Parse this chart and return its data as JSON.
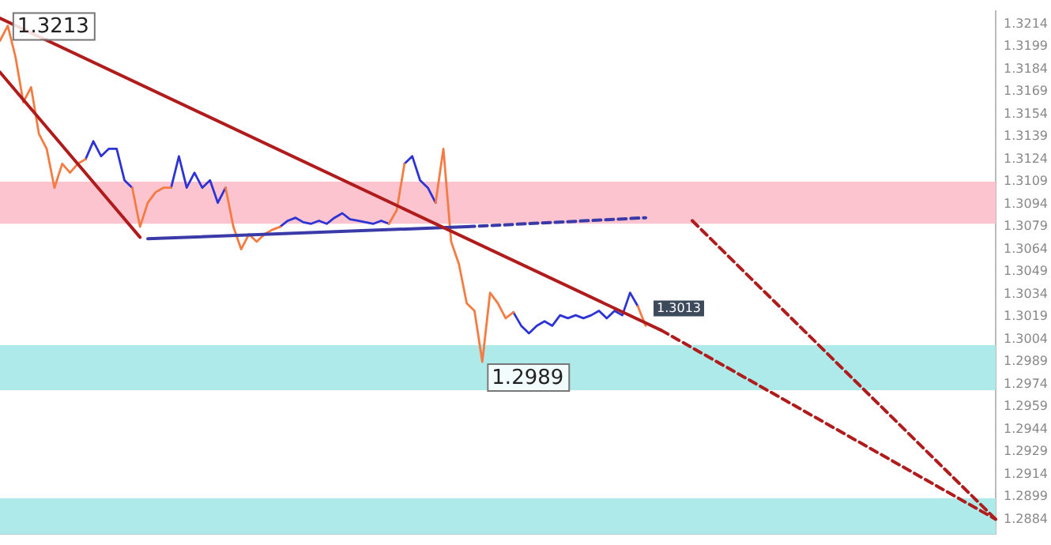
{
  "chart_data": {
    "type": "line",
    "categories": [
      null,
      null,
      null,
      null,
      null,
      null,
      null,
      null,
      null,
      null,
      null,
      null,
      null,
      null,
      null,
      null,
      null,
      null,
      null,
      null,
      null,
      null,
      null,
      null,
      null,
      null,
      null,
      null,
      null,
      null,
      null,
      null,
      null,
      null,
      null,
      null,
      null,
      null,
      null,
      null,
      null,
      null,
      null,
      null,
      null,
      null,
      null,
      null,
      null,
      null,
      null,
      null,
      null,
      null,
      null,
      null,
      null,
      null,
      null,
      null,
      null,
      null,
      null,
      null,
      null,
      null,
      null,
      null,
      null,
      null,
      null,
      null,
      null,
      null,
      null,
      null,
      null,
      null,
      null,
      null,
      null,
      null,
      null,
      null,
      null,
      null,
      null,
      null,
      null,
      null,
      null,
      null,
      null,
      null,
      null,
      null,
      null,
      null,
      null,
      null,
      null,
      null,
      null,
      null,
      null,
      null,
      null,
      null,
      null,
      null,
      null,
      null,
      null,
      null,
      null,
      null,
      null,
      null,
      null,
      null,
      null,
      null,
      null,
      null,
      null,
      null,
      null,
      null,
      null
    ],
    "series": [
      {
        "color": "#f47b42",
        "value_labels": [
          null,
          "1.3213",
          null,
          null,
          null,
          null,
          null,
          null,
          null,
          null,
          null,
          null,
          null,
          null,
          null,
          null,
          null,
          null,
          null,
          null,
          null,
          null,
          null,
          null,
          null,
          null,
          null,
          null,
          null,
          null,
          null,
          null,
          null,
          null,
          null,
          null,
          null,
          null,
          null,
          null,
          null,
          null,
          null,
          null,
          null,
          null,
          null,
          null,
          null,
          null,
          null,
          null,
          null,
          null,
          null,
          null,
          null,
          null,
          null,
          null,
          null,
          null,
          "1.2989",
          null,
          null,
          null,
          null,
          null,
          null,
          null,
          null,
          null,
          null,
          null,
          null,
          null,
          null,
          null,
          null,
          null,
          null,
          null,
          null,
          "1.3013",
          null,
          null,
          null,
          null,
          null,
          null,
          null,
          null,
          null,
          null,
          null,
          null,
          null,
          null,
          null,
          null,
          null,
          null,
          null,
          null,
          null,
          null,
          null,
          null,
          null,
          null,
          null,
          null,
          null,
          null,
          null,
          null,
          null,
          null,
          null,
          null,
          null,
          null,
          null,
          null,
          null,
          null,
          null,
          null,
          null
        ],
        "values": [
          1.3203,
          1.3213,
          1.3192,
          1.3162,
          1.3172,
          1.3141,
          1.3131,
          1.3105,
          1.3121,
          1.3115,
          1.3121,
          1.3124,
          null,
          null,
          null,
          null,
          null,
          1.3105,
          1.3079,
          1.3095,
          1.3102,
          1.3105,
          1.3105,
          null,
          null,
          null,
          null,
          null,
          null,
          1.3105,
          1.3079,
          1.3064,
          1.3074,
          1.3069,
          1.3074,
          1.3077,
          1.3079,
          null,
          null,
          null,
          null,
          null,
          null,
          null,
          null,
          null,
          null,
          null,
          null,
          null,
          1.3081,
          1.309,
          1.3121,
          null,
          null,
          null,
          1.3095,
          1.3131,
          1.3069,
          1.3054,
          1.3028,
          1.3023,
          1.2989,
          1.3035,
          1.3028,
          1.3018,
          1.3022,
          null,
          null,
          null,
          null,
          null,
          null,
          null,
          null,
          null,
          null,
          null,
          null,
          null,
          null,
          null,
          1.3026,
          1.3013,
          null,
          null,
          null,
          null,
          null,
          null,
          null,
          null,
          null,
          null,
          null,
          null,
          null,
          null,
          null,
          null,
          null,
          null,
          null,
          null,
          null,
          null,
          null,
          null,
          null,
          null,
          null,
          null,
          null,
          null,
          null,
          null,
          null,
          null,
          null,
          null,
          null,
          null,
          null,
          null,
          null,
          null,
          null,
          null,
          null
        ]
      },
      {
        "color": "#2e33d6",
        "values": [
          null,
          null,
          null,
          null,
          null,
          null,
          null,
          null,
          null,
          null,
          null,
          1.3124,
          1.3136,
          1.3126,
          1.3131,
          1.3131,
          1.311,
          1.3105,
          null,
          null,
          null,
          null,
          1.3105,
          1.3126,
          1.3105,
          1.3115,
          1.3105,
          1.311,
          1.3095,
          1.3105,
          null,
          null,
          null,
          null,
          null,
          null,
          1.3079,
          1.3083,
          1.3085,
          1.3082,
          1.3081,
          1.3083,
          1.3081,
          1.3085,
          1.3088,
          1.3084,
          1.3083,
          1.3082,
          1.3081,
          1.3083,
          1.3081,
          null,
          1.3121,
          1.3126,
          1.311,
          1.3105,
          1.3095,
          null,
          null,
          null,
          null,
          null,
          null,
          null,
          null,
          null,
          1.3022,
          1.3013,
          1.3008,
          1.3013,
          1.3016,
          1.3013,
          1.302,
          1.3018,
          1.302,
          1.3018,
          1.302,
          1.3023,
          1.3018,
          1.3023,
          1.302,
          1.3035,
          1.3026,
          null,
          null,
          null,
          null,
          null,
          null,
          null,
          null,
          null,
          null,
          null,
          null,
          null,
          null,
          null,
          null,
          null,
          null,
          null,
          null,
          null,
          null,
          null,
          null,
          null,
          null,
          null,
          null,
          null,
          null,
          null,
          null,
          null,
          null,
          null,
          null,
          null,
          null,
          null,
          null,
          null,
          null,
          null,
          null,
          null,
          null
        ]
      },
      {
        "type": "line",
        "color": "#b01c1c",
        "values": [
          1.3218,
          null,
          null,
          null,
          null,
          null,
          null,
          null,
          null,
          null,
          null,
          null,
          null,
          null,
          null,
          null,
          null,
          null,
          null,
          null,
          null,
          null,
          null,
          null,
          null,
          null,
          null,
          null,
          null,
          null,
          null,
          null,
          null,
          null,
          null,
          null,
          null,
          null,
          null,
          null,
          null,
          null,
          null,
          null,
          null,
          null,
          null,
          null,
          null,
          null,
          null,
          null,
          null,
          null,
          null,
          null,
          null,
          null,
          null,
          null,
          null,
          null,
          null,
          null,
          null,
          null,
          null,
          null,
          null,
          null,
          null,
          null,
          null,
          null,
          null,
          null,
          null,
          null,
          null,
          null,
          null,
          null,
          null,
          null,
          null,
          1.301,
          null,
          null,
          null,
          null,
          null,
          null,
          null,
          null,
          null,
          null,
          null,
          null,
          null,
          null,
          null,
          null,
          null,
          null,
          null,
          null,
          null,
          null,
          null,
          null,
          null,
          null,
          null,
          null,
          null,
          null,
          null,
          null,
          null,
          null,
          null,
          null,
          null,
          null,
          null,
          null,
          null,
          null,
          null
        ]
      },
      {
        "type": "line",
        "color": "#b01c1c",
        "line_style": "dashed",
        "values": [
          null,
          null,
          null,
          null,
          null,
          null,
          null,
          null,
          null,
          null,
          null,
          null,
          null,
          null,
          null,
          null,
          null,
          null,
          null,
          null,
          null,
          null,
          null,
          null,
          null,
          null,
          null,
          null,
          null,
          null,
          null,
          null,
          null,
          null,
          null,
          null,
          null,
          null,
          null,
          null,
          null,
          null,
          null,
          null,
          null,
          null,
          null,
          null,
          null,
          null,
          null,
          null,
          null,
          null,
          null,
          null,
          null,
          null,
          null,
          null,
          null,
          null,
          null,
          null,
          null,
          null,
          null,
          null,
          null,
          null,
          null,
          null,
          null,
          null,
          null,
          null,
          null,
          null,
          null,
          null,
          null,
          null,
          null,
          null,
          null,
          1.301,
          null,
          null,
          null,
          null,
          null,
          null,
          null,
          null,
          null,
          null,
          null,
          null,
          null,
          null,
          null,
          null,
          null,
          null,
          null,
          null,
          null,
          null,
          null,
          null,
          null,
          null,
          null,
          null,
          null,
          null,
          null,
          null,
          null,
          null,
          null,
          null,
          null,
          null,
          null,
          null,
          null,
          null,
          1.2884
        ]
      },
      {
        "type": "line",
        "color": "#b01c1c",
        "values": [
          1.3182,
          null,
          null,
          null,
          null,
          null,
          null,
          null,
          null,
          null,
          null,
          null,
          null,
          null,
          null,
          null,
          null,
          null,
          1.3072,
          null,
          null,
          null,
          null,
          null,
          null,
          null,
          null,
          null,
          null,
          null,
          null,
          null,
          null,
          null,
          null,
          null,
          null,
          null,
          null,
          null,
          null,
          null,
          null,
          null,
          null,
          null,
          null,
          null,
          null,
          null,
          null,
          null,
          null,
          null,
          null,
          null,
          null,
          null,
          null,
          null,
          null,
          null,
          null,
          null,
          null,
          null,
          null,
          null,
          null,
          null,
          null,
          null,
          null,
          null,
          null,
          null,
          null,
          null,
          null,
          null,
          null,
          null,
          null,
          null,
          null,
          null,
          null,
          null,
          null,
          null,
          null,
          null,
          null,
          null,
          null,
          null,
          null,
          null,
          null,
          null,
          null,
          null,
          null,
          null,
          null,
          null,
          null,
          null,
          null,
          null,
          null,
          null,
          null,
          null,
          null,
          null,
          null,
          null,
          null,
          null,
          null,
          null,
          null,
          null,
          null,
          null,
          null,
          null,
          null
        ]
      },
      {
        "type": "line",
        "color": "#3a3aa8",
        "values": [
          null,
          null,
          null,
          null,
          null,
          null,
          null,
          null,
          null,
          null,
          null,
          null,
          null,
          null,
          null,
          null,
          null,
          null,
          null,
          1.3071,
          null,
          null,
          null,
          null,
          null,
          null,
          null,
          null,
          null,
          null,
          null,
          null,
          null,
          null,
          null,
          null,
          null,
          null,
          null,
          null,
          null,
          null,
          null,
          null,
          null,
          null,
          null,
          null,
          null,
          null,
          null,
          null,
          null,
          null,
          null,
          null,
          null,
          null,
          null,
          null,
          1.3079,
          null,
          null,
          null,
          null,
          null,
          null,
          null,
          null,
          null,
          null,
          null,
          null,
          null,
          null,
          null,
          null,
          null,
          null,
          null,
          null,
          null,
          null,
          null,
          null,
          null,
          null,
          null,
          null,
          null,
          null,
          null,
          null,
          null,
          null,
          null,
          null,
          null,
          null,
          null,
          null,
          null,
          null,
          null,
          null,
          null,
          null,
          null,
          null,
          null,
          null,
          null,
          null,
          null,
          null,
          null,
          null,
          null,
          null,
          null,
          null,
          null,
          null,
          null,
          null,
          null,
          null,
          null,
          null
        ]
      },
      {
        "type": "line",
        "color": "#3a3aa8",
        "line_style": "dashed",
        "values": [
          null,
          null,
          null,
          null,
          null,
          null,
          null,
          null,
          null,
          null,
          null,
          null,
          null,
          null,
          null,
          null,
          null,
          null,
          null,
          null,
          null,
          null,
          null,
          null,
          null,
          null,
          null,
          null,
          null,
          null,
          null,
          null,
          null,
          null,
          null,
          null,
          null,
          null,
          null,
          null,
          null,
          null,
          null,
          null,
          null,
          null,
          null,
          null,
          null,
          null,
          null,
          null,
          null,
          null,
          null,
          null,
          null,
          null,
          null,
          null,
          1.3079,
          null,
          null,
          null,
          null,
          null,
          null,
          null,
          null,
          null,
          null,
          null,
          null,
          null,
          null,
          null,
          null,
          null,
          null,
          null,
          null,
          null,
          null,
          1.3085,
          null,
          null,
          null,
          null,
          null,
          null,
          null,
          null,
          null,
          null,
          null,
          null,
          null,
          null,
          null,
          null,
          null,
          null,
          null,
          null,
          null,
          null,
          null,
          null,
          null,
          null,
          null,
          null,
          null,
          null,
          null,
          null,
          null,
          null,
          null,
          null,
          null,
          null,
          null,
          null,
          null,
          null,
          null,
          null,
          null
        ]
      },
      {
        "type": "line",
        "color": "#b01c1c",
        "line_style": "dashed",
        "values": [
          null,
          null,
          null,
          null,
          null,
          null,
          null,
          null,
          null,
          null,
          null,
          null,
          null,
          null,
          null,
          null,
          null,
          null,
          null,
          null,
          null,
          null,
          null,
          null,
          null,
          null,
          null,
          null,
          null,
          null,
          null,
          null,
          null,
          null,
          null,
          null,
          null,
          null,
          null,
          null,
          null,
          null,
          null,
          null,
          null,
          null,
          null,
          null,
          null,
          null,
          null,
          null,
          null,
          null,
          null,
          null,
          null,
          null,
          null,
          null,
          null,
          null,
          null,
          null,
          null,
          null,
          null,
          null,
          null,
          null,
          null,
          null,
          null,
          null,
          null,
          null,
          null,
          null,
          null,
          null,
          null,
          null,
          null,
          null,
          null,
          null,
          null,
          null,
          null,
          1.3083,
          null,
          null,
          null,
          null,
          null,
          null,
          null,
          null,
          null,
          null,
          null,
          null,
          null,
          null,
          null,
          null,
          null,
          null,
          null,
          null,
          null,
          null,
          null,
          null,
          null,
          null,
          null,
          null,
          null,
          null,
          null,
          null,
          null,
          null,
          null,
          null,
          null,
          null,
          1.2884
        ]
      }
    ],
    "ylim": [
      1.2874,
      1.3223
    ],
    "yticks": [
      1.3214,
      1.3199,
      1.3184,
      1.3169,
      1.3154,
      1.3139,
      1.3124,
      1.3109,
      1.3094,
      1.3079,
      1.3064,
      1.3049,
      1.3034,
      1.3019,
      1.3004,
      1.2989,
      1.2974,
      1.2959,
      1.2944,
      1.2929,
      1.2914,
      1.2899,
      1.2884
    ],
    "bands": [
      {
        "axis": "y",
        "from": 1.3081,
        "to": 1.3109,
        "color": "#fbc4cf"
      },
      {
        "axis": "y",
        "from": 1.297,
        "to": 1.3,
        "color": "#aeeaea"
      },
      {
        "axis": "y",
        "from": 1.2874,
        "to": 1.2898,
        "color": "#aeeaea"
      }
    ],
    "tick_labels": "y",
    "grid": false,
    "legend": false,
    "marker": "none",
    "line_style": "solid"
  }
}
